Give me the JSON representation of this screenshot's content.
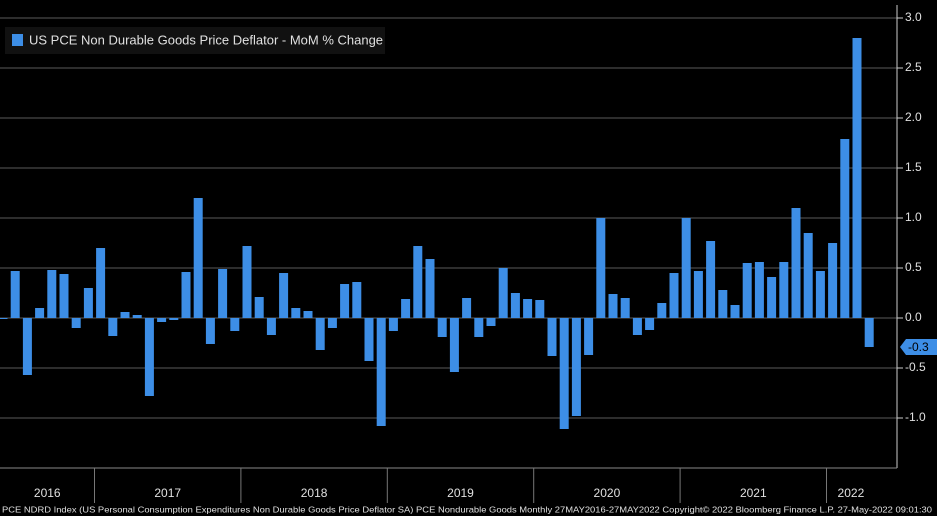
{
  "chart_data": {
    "type": "bar",
    "legend": "US PCE Non Durable Goods Price Deflator - MoM % Change",
    "x": [
      "2016",
      "2016",
      "2016",
      "2016",
      "2016",
      "2016",
      "2016",
      "2016",
      "2017",
      "2017",
      "2017",
      "2017",
      "2017",
      "2017",
      "2017",
      "2017",
      "2017",
      "2017",
      "2017",
      "2017",
      "2018",
      "2018",
      "2018",
      "2018",
      "2018",
      "2018",
      "2018",
      "2018",
      "2018",
      "2018",
      "2018",
      "2018",
      "2019",
      "2019",
      "2019",
      "2019",
      "2019",
      "2019",
      "2019",
      "2019",
      "2019",
      "2019",
      "2019",
      "2019",
      "2020",
      "2020",
      "2020",
      "2020",
      "2020",
      "2020",
      "2020",
      "2020",
      "2020",
      "2020",
      "2020",
      "2020",
      "2021",
      "2021",
      "2021",
      "2021",
      "2021",
      "2021",
      "2021",
      "2021",
      "2021",
      "2021",
      "2021",
      "2021",
      "2022",
      "2022",
      "2022",
      "2022"
    ],
    "values": [
      -0.01,
      0.47,
      -0.57,
      0.1,
      0.48,
      0.44,
      -0.1,
      0.3,
      0.7,
      -0.18,
      0.06,
      0.03,
      -0.78,
      -0.04,
      -0.02,
      0.46,
      1.2,
      -0.26,
      0.49,
      -0.13,
      0.72,
      0.21,
      -0.17,
      0.45,
      0.1,
      0.07,
      -0.32,
      -0.1,
      0.34,
      0.36,
      -0.43,
      -1.08,
      -0.13,
      0.19,
      0.72,
      0.59,
      -0.19,
      -0.54,
      0.2,
      -0.19,
      -0.08,
      0.5,
      0.25,
      0.19,
      0.18,
      -0.38,
      -1.11,
      -0.98,
      -0.37,
      1.0,
      0.24,
      0.2,
      -0.17,
      -0.12,
      0.15,
      0.45,
      1.0,
      0.47,
      0.77,
      0.28,
      0.13,
      0.55,
      0.56,
      0.41,
      0.56,
      1.1,
      0.85,
      0.47,
      0.75,
      1.79,
      2.8,
      -0.29
    ],
    "value_labels": [
      null,
      null,
      null,
      null,
      null,
      null,
      null,
      null,
      null,
      null,
      null,
      null,
      null,
      null,
      null,
      null,
      null,
      null,
      null,
      null,
      null,
      null,
      null,
      null,
      null,
      null,
      null,
      null,
      null,
      null,
      null,
      null,
      null,
      null,
      null,
      null,
      null,
      null,
      null,
      null,
      null,
      null,
      null,
      null,
      null,
      null,
      null,
      null,
      null,
      null,
      null,
      null,
      null,
      null,
      null,
      null,
      null,
      null,
      null,
      null,
      null,
      null,
      null,
      null,
      null,
      null,
      null,
      null,
      null,
      null,
      null,
      "-0.3"
    ],
    "color": "#3d8ee6",
    "ylim": [
      -1.5,
      3.0
    ],
    "yticks": [
      {
        "value": 3.0,
        "label": "3.0"
      },
      {
        "value": 2.5,
        "label": "2.5"
      },
      {
        "value": 2.0,
        "label": "2.0"
      },
      {
        "value": 1.5,
        "label": "1.5"
      },
      {
        "value": 1.0,
        "label": "1.0"
      },
      {
        "value": 0.5,
        "label": "0.5"
      },
      {
        "value": 0.0,
        "label": "0.0"
      },
      {
        "value": -0.5,
        "label": "-0.5"
      },
      {
        "value": -1.0,
        "label": "-1.0"
      }
    ],
    "grid": true,
    "footer": "PCE NDRD Index (US Personal Consumption Expenditures Non Durable Goods Price Deflator SA) PCE Nondurable Goods  Monthly 27MAY2016-27MAY2022  Copyright© 2022 Bloomberg Finance L.P.  27-May-2022 09:01:30"
  }
}
